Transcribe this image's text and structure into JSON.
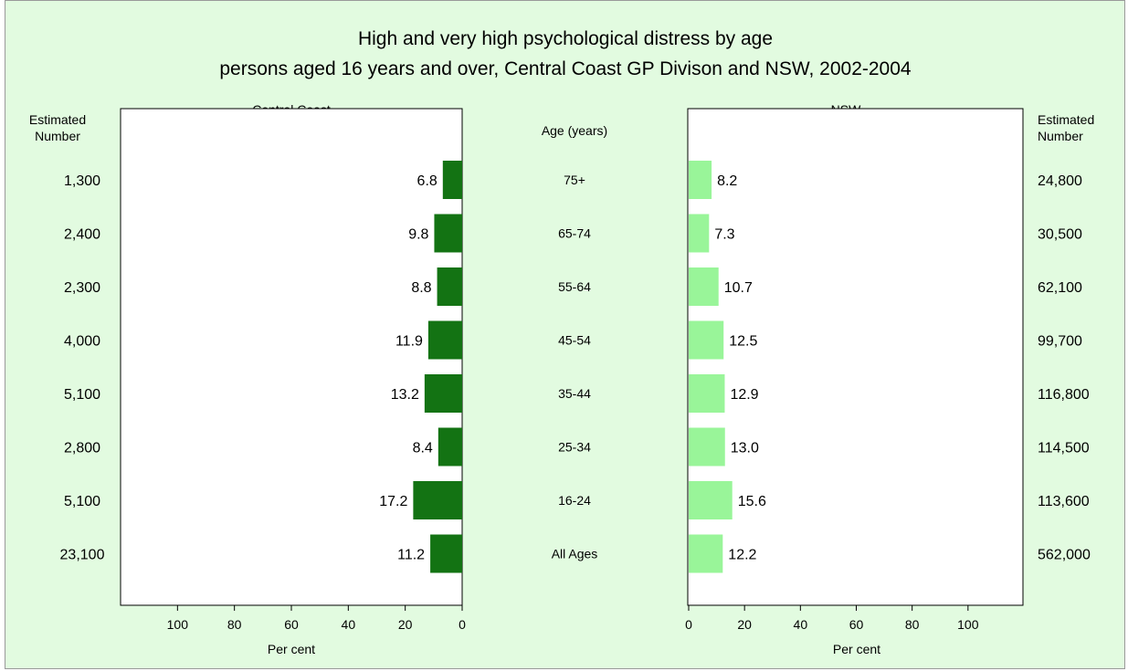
{
  "chart_data": {
    "type": "bar",
    "title_line1": "High and very high psychological distress by age",
    "title_line2": "persons aged 16 years and over, Central Coast GP Divison and NSW, 2002-2004",
    "categories_header": "Age (years)",
    "categories": [
      "75+",
      "65-74",
      "55-64",
      "45-54",
      "35-44",
      "25-34",
      "16-24",
      "All Ages"
    ],
    "left_panel": {
      "name": "Central Coast",
      "color": "#137313",
      "values": [
        6.8,
        9.8,
        8.8,
        11.9,
        13.2,
        8.4,
        17.2,
        11.2
      ],
      "value_labels": [
        "6.8",
        "9.8",
        "8.8",
        "11.9",
        "13.2",
        "8.4",
        "17.2",
        "11.2"
      ],
      "estimated_header": [
        "Estimated",
        "Number"
      ],
      "estimated_numbers": [
        "1,300",
        "2,400",
        "2,300",
        "4,000",
        "5,100",
        "2,800",
        "5,100",
        "23,100"
      ],
      "ticks": [
        "100",
        "80",
        "60",
        "40",
        "20",
        "0"
      ],
      "xlabel": "Per cent",
      "xlim": [
        0,
        120
      ]
    },
    "right_panel": {
      "name": "NSW",
      "color": "#99f599",
      "values": [
        8.2,
        7.3,
        10.7,
        12.5,
        12.9,
        13.0,
        15.6,
        12.2
      ],
      "value_labels": [
        "8.2",
        "7.3",
        "10.7",
        "12.5",
        "12.9",
        "13.0",
        "15.6",
        "12.2"
      ],
      "estimated_header": [
        "Estimated",
        "Number"
      ],
      "estimated_numbers": [
        "24,800",
        "30,500",
        "62,100",
        "99,700",
        "116,800",
        "114,500",
        "113,600",
        "562,000"
      ],
      "ticks": [
        "0",
        "20",
        "40",
        "60",
        "80",
        "100"
      ],
      "xlabel": "Per cent",
      "xlim": [
        0,
        120
      ]
    }
  }
}
